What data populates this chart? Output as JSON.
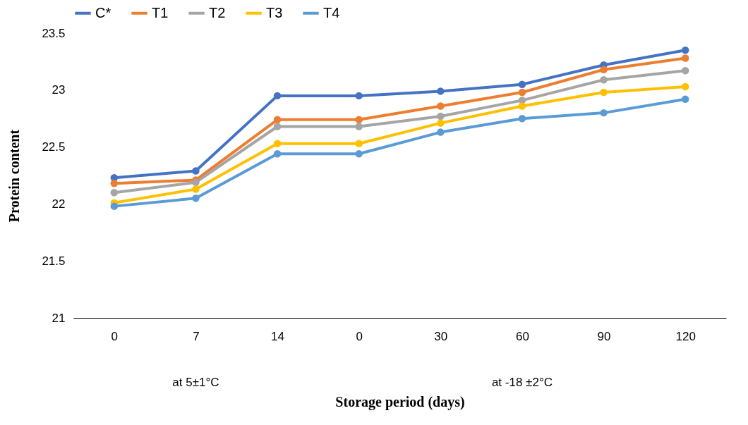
{
  "chart_data": {
    "type": "line",
    "xlabel": "Storage period (days)",
    "ylabel": "Protein content",
    "categories": [
      "0",
      "7",
      "14",
      "0",
      "30",
      "60",
      "90",
      "120"
    ],
    "series": [
      {
        "name": "C*",
        "color": "#4472c4",
        "values": [
          22.23,
          22.29,
          22.95,
          22.95,
          22.99,
          23.05,
          23.22,
          23.35
        ]
      },
      {
        "name": "T1",
        "color": "#ed7d31",
        "values": [
          22.18,
          22.21,
          22.74,
          22.74,
          22.86,
          22.98,
          23.18,
          23.28
        ]
      },
      {
        "name": "T2",
        "color": "#a5a5a5",
        "values": [
          22.1,
          22.19,
          22.68,
          22.68,
          22.77,
          22.91,
          23.09,
          23.17
        ]
      },
      {
        "name": "T3",
        "color": "#ffc000",
        "values": [
          22.01,
          22.13,
          22.53,
          22.53,
          22.71,
          22.86,
          22.98,
          23.03
        ]
      },
      {
        "name": "T4",
        "color": "#5b9bd5",
        "values": [
          21.98,
          22.05,
          22.44,
          22.44,
          22.63,
          22.75,
          22.8,
          22.92
        ]
      }
    ],
    "ylim": [
      21,
      23.5
    ],
    "yticks": [
      21,
      21.5,
      22,
      22.5,
      23,
      23.5
    ],
    "annotations": [
      "at 5±1°C",
      "at -18 ±2°C"
    ],
    "grid": false,
    "legend": "top",
    "marker": "circle",
    "line_style": "solid"
  }
}
